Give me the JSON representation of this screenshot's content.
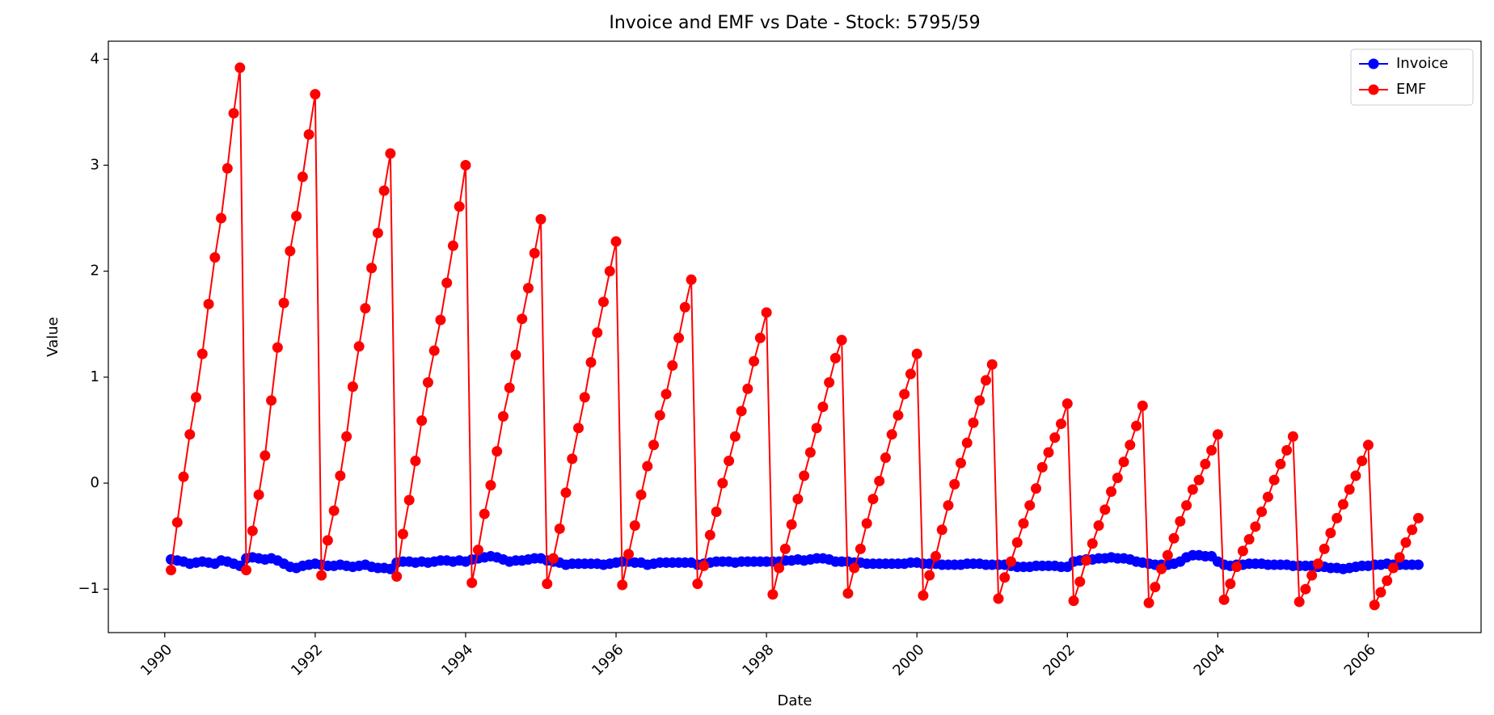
{
  "chart_data": {
    "type": "line",
    "title": "Invoice and EMF vs Date - Stock: 5795/59",
    "xlabel": "Date",
    "ylabel": "Value",
    "x": [
      "1990-02",
      "1990-03",
      "1990-04",
      "1990-05",
      "1990-06",
      "1990-07",
      "1990-08",
      "1990-09",
      "1990-10",
      "1990-11",
      "1990-12",
      "1991-01",
      "1991-02",
      "1991-03",
      "1991-04",
      "1991-05",
      "1991-06",
      "1991-07",
      "1991-08",
      "1991-09",
      "1991-10",
      "1991-11",
      "1991-12",
      "1992-01",
      "1992-02",
      "1992-03",
      "1992-04",
      "1992-05",
      "1992-06",
      "1992-07",
      "1992-08",
      "1992-09",
      "1992-10",
      "1992-11",
      "1992-12",
      "1993-01",
      "1993-02",
      "1993-03",
      "1993-04",
      "1993-05",
      "1993-06",
      "1993-07",
      "1993-08",
      "1993-09",
      "1993-10",
      "1993-11",
      "1993-12",
      "1994-01",
      "1994-02",
      "1994-03",
      "1994-04",
      "1994-05",
      "1994-06",
      "1994-07",
      "1994-08",
      "1994-09",
      "1994-10",
      "1994-11",
      "1994-12",
      "1995-01",
      "1995-02",
      "1995-03",
      "1995-04",
      "1995-05",
      "1995-06",
      "1995-07",
      "1995-08",
      "1995-09",
      "1995-10",
      "1995-11",
      "1995-12",
      "1996-01",
      "1996-02",
      "1996-03",
      "1996-04",
      "1996-05",
      "1996-06",
      "1996-07",
      "1996-08",
      "1996-09",
      "1996-10",
      "1996-11",
      "1996-12",
      "1997-01",
      "1997-02",
      "1997-03",
      "1997-04",
      "1997-05",
      "1997-06",
      "1997-07",
      "1997-08",
      "1997-09",
      "1997-10",
      "1997-11",
      "1997-12",
      "1998-01",
      "1998-02",
      "1998-03",
      "1998-04",
      "1998-05",
      "1998-06",
      "1998-07",
      "1998-08",
      "1998-09",
      "1998-10",
      "1998-11",
      "1998-12",
      "1999-01",
      "1999-02",
      "1999-03",
      "1999-04",
      "1999-05",
      "1999-06",
      "1999-07",
      "1999-08",
      "1999-09",
      "1999-10",
      "1999-11",
      "1999-12",
      "2000-01",
      "2000-02",
      "2000-03",
      "2000-04",
      "2000-05",
      "2000-06",
      "2000-07",
      "2000-08",
      "2000-09",
      "2000-10",
      "2000-11",
      "2000-12",
      "2001-01",
      "2001-02",
      "2001-03",
      "2001-04",
      "2001-05",
      "2001-06",
      "2001-07",
      "2001-08",
      "2001-09",
      "2001-10",
      "2001-11",
      "2001-12",
      "2002-01",
      "2002-02",
      "2002-03",
      "2002-04",
      "2002-05",
      "2002-06",
      "2002-07",
      "2002-08",
      "2002-09",
      "2002-10",
      "2002-11",
      "2002-12",
      "2003-01",
      "2003-02",
      "2003-03",
      "2003-04",
      "2003-05",
      "2003-06",
      "2003-07",
      "2003-08",
      "2003-09",
      "2003-10",
      "2003-11",
      "2003-12",
      "2004-01",
      "2004-02",
      "2004-03",
      "2004-04",
      "2004-05",
      "2004-06",
      "2004-07",
      "2004-08",
      "2004-09",
      "2004-10",
      "2004-11",
      "2004-12",
      "2005-01",
      "2005-02",
      "2005-03",
      "2005-04",
      "2005-05",
      "2005-06",
      "2005-07",
      "2005-08",
      "2005-09",
      "2005-10",
      "2005-11",
      "2005-12",
      "2006-01",
      "2006-02",
      "2006-03",
      "2006-04",
      "2006-05",
      "2006-06",
      "2006-07",
      "2006-08",
      "2006-09"
    ],
    "series": [
      {
        "name": "Invoice",
        "color": "#0000ff",
        "values": [
          -0.72,
          -0.73,
          -0.74,
          -0.76,
          -0.75,
          -0.74,
          -0.75,
          -0.76,
          -0.73,
          -0.74,
          -0.76,
          -0.78,
          -0.71,
          -0.7,
          -0.71,
          -0.72,
          -0.71,
          -0.73,
          -0.76,
          -0.79,
          -0.8,
          -0.78,
          -0.77,
          -0.76,
          -0.77,
          -0.78,
          -0.78,
          -0.77,
          -0.78,
          -0.79,
          -0.78,
          -0.77,
          -0.79,
          -0.8,
          -0.8,
          -0.81,
          -0.75,
          -0.74,
          -0.74,
          -0.75,
          -0.74,
          -0.75,
          -0.74,
          -0.73,
          -0.73,
          -0.74,
          -0.73,
          -0.74,
          -0.72,
          -0.71,
          -0.7,
          -0.69,
          -0.7,
          -0.72,
          -0.74,
          -0.73,
          -0.73,
          -0.72,
          -0.71,
          -0.71,
          -0.73,
          -0.74,
          -0.75,
          -0.77,
          -0.76,
          -0.76,
          -0.76,
          -0.76,
          -0.76,
          -0.77,
          -0.76,
          -0.75,
          -0.74,
          -0.74,
          -0.75,
          -0.75,
          -0.77,
          -0.76,
          -0.75,
          -0.75,
          -0.75,
          -0.75,
          -0.75,
          -0.75,
          -0.77,
          -0.76,
          -0.75,
          -0.74,
          -0.74,
          -0.74,
          -0.75,
          -0.74,
          -0.74,
          -0.74,
          -0.74,
          -0.74,
          -0.74,
          -0.74,
          -0.73,
          -0.73,
          -0.72,
          -0.73,
          -0.72,
          -0.71,
          -0.71,
          -0.72,
          -0.74,
          -0.74,
          -0.74,
          -0.75,
          -0.75,
          -0.76,
          -0.76,
          -0.76,
          -0.76,
          -0.76,
          -0.76,
          -0.76,
          -0.75,
          -0.75,
          -0.76,
          -0.76,
          -0.76,
          -0.77,
          -0.77,
          -0.77,
          -0.77,
          -0.76,
          -0.76,
          -0.76,
          -0.77,
          -0.77,
          -0.77,
          -0.77,
          -0.78,
          -0.79,
          -0.79,
          -0.79,
          -0.78,
          -0.78,
          -0.78,
          -0.78,
          -0.79,
          -0.79,
          -0.74,
          -0.73,
          -0.72,
          -0.72,
          -0.71,
          -0.71,
          -0.7,
          -0.71,
          -0.71,
          -0.72,
          -0.74,
          -0.75,
          -0.76,
          -0.77,
          -0.77,
          -0.77,
          -0.76,
          -0.74,
          -0.7,
          -0.68,
          -0.68,
          -0.69,
          -0.69,
          -0.74,
          -0.77,
          -0.78,
          -0.77,
          -0.77,
          -0.76,
          -0.76,
          -0.76,
          -0.77,
          -0.77,
          -0.77,
          -0.77,
          -0.78,
          -0.78,
          -0.78,
          -0.78,
          -0.79,
          -0.79,
          -0.8,
          -0.8,
          -0.81,
          -0.8,
          -0.79,
          -0.78,
          -0.78,
          -0.77,
          -0.77,
          -0.76,
          -0.77,
          -0.77,
          -0.77,
          -0.77,
          -0.77
        ]
      },
      {
        "name": "EMF",
        "color": "#ff0000",
        "values": [
          -0.82,
          -0.37,
          0.06,
          0.46,
          0.81,
          1.22,
          1.69,
          2.13,
          2.5,
          2.97,
          3.49,
          3.92,
          -0.82,
          -0.45,
          -0.11,
          0.26,
          0.78,
          1.28,
          1.7,
          2.19,
          2.52,
          2.89,
          3.29,
          3.67,
          -0.87,
          -0.54,
          -0.26,
          0.07,
          0.44,
          0.91,
          1.29,
          1.65,
          2.03,
          2.36,
          2.76,
          3.11,
          -0.88,
          -0.48,
          -0.16,
          0.21,
          0.59,
          0.95,
          1.25,
          1.54,
          1.89,
          2.24,
          2.61,
          3.0,
          -0.94,
          -0.63,
          -0.29,
          -0.02,
          0.3,
          0.63,
          0.9,
          1.21,
          1.55,
          1.84,
          2.17,
          2.49,
          -0.95,
          -0.71,
          -0.43,
          -0.09,
          0.23,
          0.52,
          0.81,
          1.14,
          1.42,
          1.71,
          2.0,
          2.28,
          -0.96,
          -0.67,
          -0.4,
          -0.11,
          0.16,
          0.36,
          0.64,
          0.84,
          1.11,
          1.37,
          1.66,
          1.92,
          -0.95,
          -0.78,
          -0.49,
          -0.27,
          0.0,
          0.21,
          0.44,
          0.68,
          0.89,
          1.15,
          1.37,
          1.61,
          -1.05,
          -0.8,
          -0.62,
          -0.39,
          -0.15,
          0.07,
          0.29,
          0.52,
          0.72,
          0.95,
          1.18,
          1.35,
          -1.04,
          -0.8,
          -0.62,
          -0.38,
          -0.15,
          0.02,
          0.24,
          0.46,
          0.64,
          0.84,
          1.03,
          1.22,
          -1.06,
          -0.87,
          -0.69,
          -0.44,
          -0.21,
          -0.01,
          0.19,
          0.38,
          0.57,
          0.78,
          0.97,
          1.12,
          -1.09,
          -0.89,
          -0.74,
          -0.56,
          -0.38,
          -0.21,
          -0.05,
          0.15,
          0.29,
          0.43,
          0.56,
          0.75,
          -1.11,
          -0.93,
          -0.73,
          -0.57,
          -0.4,
          -0.25,
          -0.08,
          0.05,
          0.2,
          0.36,
          0.54,
          0.73,
          -1.13,
          -0.98,
          -0.81,
          -0.68,
          -0.52,
          -0.36,
          -0.21,
          -0.06,
          0.03,
          0.18,
          0.31,
          0.46,
          -1.1,
          -0.95,
          -0.79,
          -0.64,
          -0.53,
          -0.41,
          -0.27,
          -0.13,
          0.03,
          0.18,
          0.31,
          0.44,
          -1.12,
          -1.0,
          -0.87,
          -0.76,
          -0.62,
          -0.47,
          -0.33,
          -0.2,
          -0.06,
          0.07,
          0.21,
          0.36,
          -1.15,
          -1.03,
          -0.92,
          -0.8,
          -0.7,
          -0.56,
          -0.44,
          -0.33
        ]
      }
    ],
    "xlim": [
      "1989-04",
      "2007-07"
    ],
    "xticks": [
      1990,
      1992,
      1994,
      1996,
      1998,
      2000,
      2002,
      2004,
      2006
    ],
    "ylim": [
      -1.41,
      4.17
    ],
    "yticks": [
      {
        "value": -1,
        "label": "−1"
      },
      0,
      1,
      2,
      3,
      4
    ],
    "grid": false,
    "legend": "upper right"
  }
}
